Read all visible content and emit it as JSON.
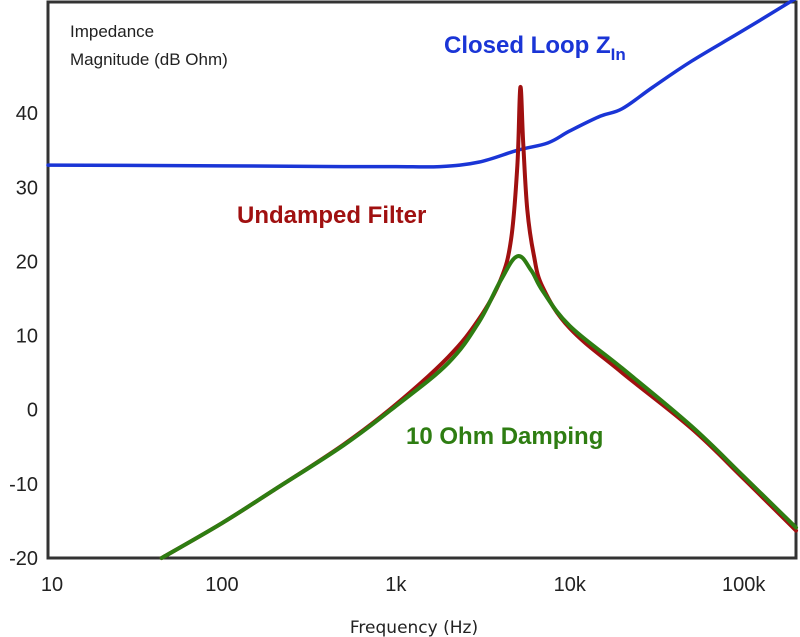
{
  "chart_data": {
    "type": "line",
    "xlabel": "Frequency (Hz)",
    "ylabel_lines": [
      "Impedance",
      "Magnitude (dB Ohm)"
    ],
    "xscale": "log",
    "xlim": [
      10,
      200000
    ],
    "ylim": [
      -20,
      55
    ],
    "grid": false,
    "x_ticks": [
      {
        "value": 10,
        "label": "10"
      },
      {
        "value": 100,
        "label": "100"
      },
      {
        "value": 1000,
        "label": "1k"
      },
      {
        "value": 10000,
        "label": "10k"
      },
      {
        "value": 100000,
        "label": "100k"
      }
    ],
    "y_ticks": [
      {
        "value": 40,
        "label": "40"
      },
      {
        "value": 30,
        "label": "30"
      },
      {
        "value": 20,
        "label": "20"
      },
      {
        "value": 10,
        "label": "10"
      },
      {
        "value": 0,
        "label": "0"
      },
      {
        "value": -10,
        "label": "-10"
      },
      {
        "value": -20,
        "label": "-20"
      }
    ],
    "series": [
      {
        "key": "closed-loop",
        "label_main": "Closed Loop Z",
        "label_sub": "In",
        "color": "#1a35d6",
        "x": [
          10,
          100,
          500,
          1000,
          1800,
          3000,
          5000,
          7500,
          10000,
          15000,
          20000,
          30000,
          50000,
          100000,
          200000
        ],
        "y": [
          33,
          32.9,
          32.8,
          32.8,
          32.8,
          33.4,
          35,
          36,
          37.6,
          39.6,
          40.6,
          43.5,
          47,
          51.2,
          55.5
        ]
      },
      {
        "key": "undamped",
        "label_main": "Undamped Filter",
        "color": "#a01010",
        "x": [
          45,
          100,
          200,
          500,
          1000,
          2000,
          3000,
          4000,
          4600,
          5000,
          5200,
          5400,
          5700,
          6200,
          7000,
          10000,
          20000,
          50000,
          100000,
          200000
        ],
        "y": [
          -20,
          -15.3,
          -10.8,
          -4.7,
          0.7,
          7.1,
          12.2,
          17.5,
          23,
          33,
          43.5,
          36,
          27,
          21,
          16.5,
          11,
          5,
          -2.5,
          -9.3,
          -16.3
        ]
      },
      {
        "key": "damped",
        "label_main": "10 Ohm Damping",
        "color": "#2e7d12",
        "x": [
          45,
          100,
          200,
          500,
          1000,
          2000,
          3000,
          4000,
          5000,
          6000,
          7000,
          10000,
          20000,
          50000,
          100000,
          200000
        ],
        "y": [
          -20,
          -15.3,
          -10.8,
          -4.8,
          0.5,
          6.3,
          11.8,
          17.4,
          20.7,
          18.8,
          16,
          11.3,
          5.6,
          -2.2,
          -9,
          -15.9
        ]
      }
    ]
  }
}
